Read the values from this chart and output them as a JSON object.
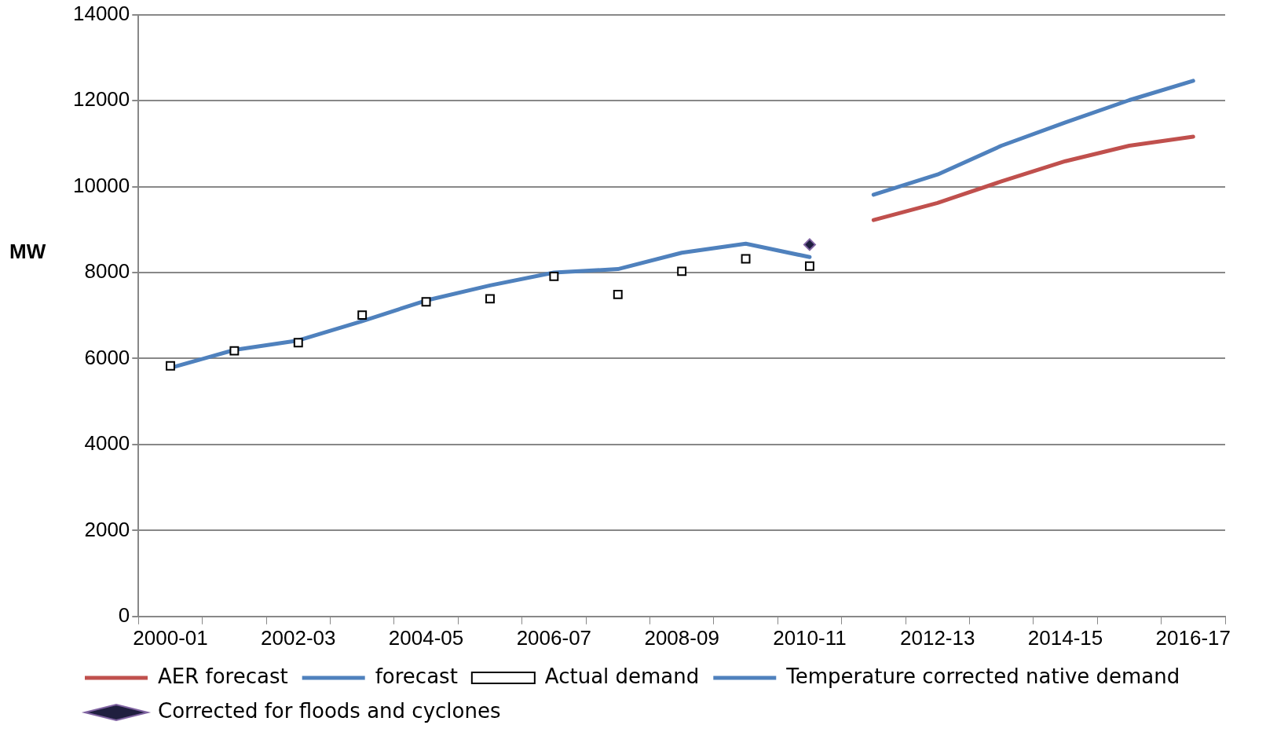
{
  "chart_data": {
    "type": "line",
    "ylabel": "MW",
    "categories": [
      "2000-01",
      null,
      "2002-03",
      null,
      "2004-05",
      null,
      "2006-07",
      null,
      "2008-09",
      null,
      "2010-11",
      null,
      "2012-13",
      null,
      "2014-15",
      null,
      "2016-17"
    ],
    "series": [
      {
        "name": "AER forecast",
        "type": "line",
        "color": "#c0504d",
        "marker": "none",
        "values": [
          null,
          null,
          null,
          null,
          null,
          null,
          null,
          null,
          null,
          null,
          null,
          9220,
          9620,
          10120,
          10590,
          10950,
          11160
        ]
      },
      {
        "name": "forecast",
        "type": "line",
        "color": "#4f81bd",
        "marker": "none",
        "values": [
          null,
          null,
          null,
          null,
          null,
          null,
          null,
          null,
          null,
          null,
          null,
          9810,
          10280,
          10950,
          11490,
          12010,
          12460
        ]
      },
      {
        "name": "Actual demand",
        "type": "scatter",
        "color": "#000000",
        "marker": "square",
        "values": [
          5830,
          6180,
          6370,
          7010,
          7320,
          7390,
          7910,
          7490,
          8030,
          8320,
          8150,
          null,
          null,
          null,
          null,
          null,
          null
        ]
      },
      {
        "name": "Temperature corrected native demand",
        "type": "line",
        "color": "#4f81bd",
        "marker": "none",
        "values": [
          5780,
          6200,
          6420,
          6870,
          7350,
          7700,
          8000,
          8080,
          8460,
          8670,
          8360,
          null,
          null,
          null,
          null,
          null,
          null
        ]
      },
      {
        "name": "Corrected for floods and cyclones",
        "type": "scatter",
        "color": "#8064a2",
        "marker": "diamond",
        "values": [
          null,
          null,
          null,
          null,
          null,
          null,
          null,
          null,
          null,
          null,
          8650,
          null,
          null,
          null,
          null,
          null,
          null
        ]
      }
    ],
    "ylim": [
      0,
      14000
    ],
    "yticks": [
      0,
      2000,
      4000,
      6000,
      8000,
      10000,
      12000,
      14000
    ],
    "grid": "y",
    "legend": "bottom"
  }
}
